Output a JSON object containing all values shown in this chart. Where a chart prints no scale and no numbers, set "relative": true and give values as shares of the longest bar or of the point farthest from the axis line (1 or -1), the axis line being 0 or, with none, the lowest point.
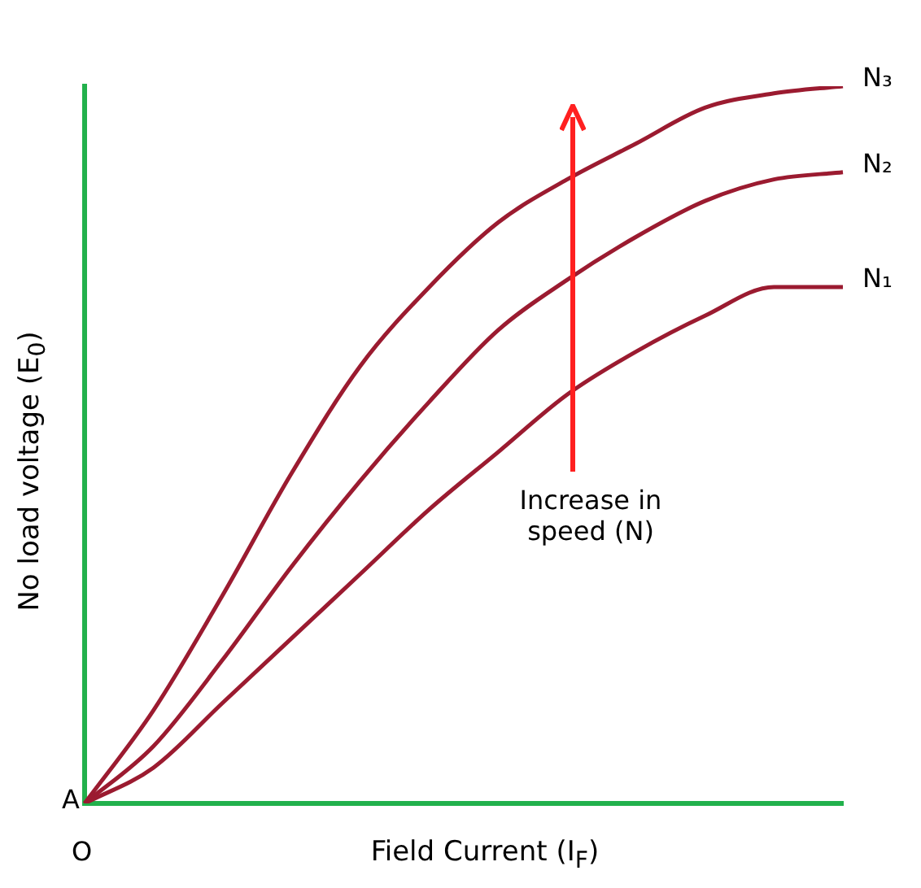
{
  "chart_data": {
    "type": "line",
    "relative": true,
    "xlabel": "Field Current (I$_{F}$)",
    "ylabel": "No load voltage (E$_{0}$)",
    "categories": [
      null,
      null,
      null,
      null,
      null,
      null,
      null,
      null,
      null,
      null,
      null,
      null
    ],
    "series": [
      {
        "name": "N₁",
        "color": "#9b1b30",
        "values": [
          0,
          0.05,
          0.14,
          0.23,
          0.32,
          0.41,
          0.49,
          0.57,
          0.63,
          0.68,
          0.72,
          0.72
        ]
      },
      {
        "name": "N₂",
        "color": "#9b1b30",
        "values": [
          0,
          0.08,
          0.2,
          0.33,
          0.45,
          0.56,
          0.66,
          0.73,
          0.79,
          0.84,
          0.87,
          0.88
        ]
      },
      {
        "name": "N₃",
        "color": "#9b1b30",
        "values": [
          0,
          0.13,
          0.29,
          0.46,
          0.61,
          0.72,
          0.81,
          0.87,
          0.92,
          0.97,
          0.99,
          1
        ]
      }
    ],
    "annotations": [
      "Increase in speed (N)",
      "A",
      "O"
    ],
    "legend": false,
    "grid": false,
    "marker": "none",
    "line_style": "solid"
  }
}
